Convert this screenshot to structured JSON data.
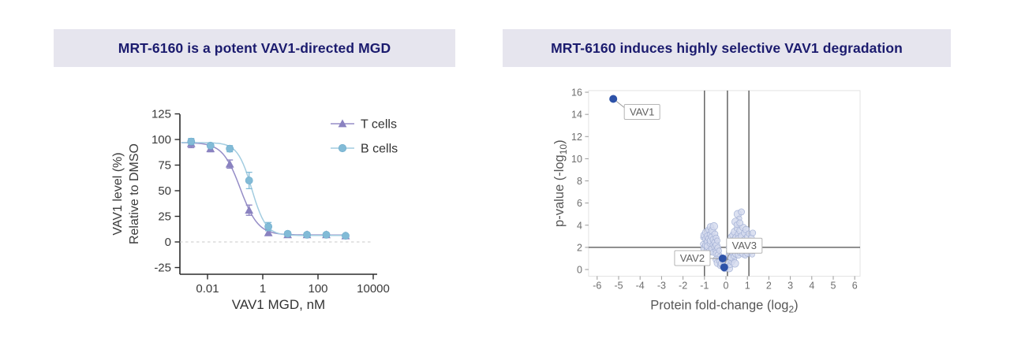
{
  "style": {
    "title_bar_bg": "#e6e5ee",
    "title_color": "#1b1b6e",
    "canvas_bg": "#ffffff"
  },
  "panels": {
    "left": {
      "title": "MRT-6160 is a potent VAV1-directed MGD"
    },
    "right": {
      "title": "MRT-6160 induces highly selective VAV1 degradation"
    }
  },
  "chart_data": [
    {
      "type": "line",
      "title": "MRT-6160 is a potent VAV1-directed MGD",
      "xlabel": "VAV1 MGD, nM",
      "ylabel_lines": [
        "VAV1 level (%)",
        "Relative to DMSO"
      ],
      "x_scale": "log10",
      "xlim": [
        0.0013,
        1200
      ],
      "ylim": [
        -25,
        125
      ],
      "x_tick_values": [
        0.01,
        1,
        100,
        10000
      ],
      "x_tick_labels": [
        "0.01",
        "1",
        "100",
        "10000"
      ],
      "y_ticks": [
        -25,
        0,
        25,
        50,
        75,
        100,
        125
      ],
      "zero_line": 0,
      "zero_line_color": "#c9c9c9",
      "axis_color": "#2b2b2b",
      "text_color": "#3a3a3a",
      "doses": [
        0.00256,
        0.0128,
        0.064,
        0.32,
        1.6,
        8,
        40,
        200,
        1000
      ],
      "series": [
        {
          "name": "T cells",
          "marker": "triangle",
          "marker_color": "#8a82c0",
          "line_color": "#958dc7",
          "values": [
            96,
            91,
            76,
            31,
            9,
            7,
            7,
            7,
            6
          ],
          "errors": [
            4,
            3,
            4,
            5,
            2,
            1,
            1,
            1,
            1
          ],
          "fit": {
            "top": 97,
            "bottom": 6.8,
            "ec50": 0.155,
            "hill": 1.35
          }
        },
        {
          "name": "B cells",
          "marker": "circle",
          "marker_color": "#82bbd7",
          "line_color": "#a2cce0",
          "values": [
            98,
            94,
            91,
            60,
            15,
            8,
            7,
            7,
            6
          ],
          "errors": [
            3,
            2,
            3,
            8,
            4,
            2,
            1,
            1,
            1
          ],
          "fit": {
            "top": 97,
            "bottom": 6.3,
            "ec50": 0.4,
            "hill": 1.7
          }
        }
      ]
    },
    {
      "type": "scatter",
      "title": "MRT-6160 induces highly selective VAV1 degradation",
      "xlabel": {
        "pre": "Protein fold-change (log",
        "sub": "2",
        "post": ")"
      },
      "ylabel": {
        "pre": "p-value (-log",
        "sub": "10",
        "post": ")"
      },
      "xlim": [
        -6.4,
        6.25
      ],
      "ylim": [
        -0.6,
        16.15
      ],
      "x_ticks": [
        -6,
        -5,
        -4,
        -3,
        -2,
        -1,
        0,
        1,
        2,
        3,
        4,
        5,
        6
      ],
      "y_ticks": [
        0,
        2,
        4,
        6,
        8,
        10,
        12,
        14,
        16
      ],
      "vlines": [
        -1,
        0.07,
        1.07
      ],
      "hline": 2,
      "colors": {
        "refline": "#4d4d4d",
        "border": "#e3e3e3",
        "point_fill": "#d3daee",
        "point_stroke": "#9fadd3",
        "highlight": "#2d52a8",
        "tick_text": "#6e6e6e",
        "label_text": "#5f5f5f",
        "label_border": "#b5b5b5"
      },
      "highlights": [
        {
          "label": "VAV1",
          "x": -5.25,
          "y": 15.4,
          "label_pos": "right-below"
        },
        {
          "label": "VAV2",
          "x": -0.15,
          "y": 1.0,
          "label_pos": "left"
        },
        {
          "label": "VAV3",
          "x": -0.08,
          "y": 0.2,
          "label_pos": "above-right"
        }
      ],
      "points": [
        [
          -1.07,
          2.3
        ],
        [
          -1.04,
          2.9
        ],
        [
          -1.02,
          3.1
        ],
        [
          -1.0,
          1.9
        ],
        [
          -0.97,
          2.75
        ],
        [
          -0.95,
          2.2
        ],
        [
          -0.93,
          3.35
        ],
        [
          -0.9,
          1.75
        ],
        [
          -0.88,
          2.5
        ],
        [
          -0.86,
          3.0
        ],
        [
          -0.84,
          2.1
        ],
        [
          -0.82,
          3.6
        ],
        [
          -0.8,
          2.8
        ],
        [
          -0.78,
          1.6
        ],
        [
          -0.76,
          2.35
        ],
        [
          -0.74,
          3.15
        ],
        [
          -0.72,
          3.85
        ],
        [
          -0.7,
          2.6
        ],
        [
          -0.68,
          1.9
        ],
        [
          -0.66,
          2.95
        ],
        [
          -0.64,
          3.5
        ],
        [
          -0.62,
          2.25
        ],
        [
          -0.6,
          1.55
        ],
        [
          -0.58,
          2.7
        ],
        [
          -0.56,
          3.9
        ],
        [
          -0.54,
          2.05
        ],
        [
          -0.52,
          3.2
        ],
        [
          -0.5,
          2.45
        ],
        [
          -0.48,
          1.7
        ],
        [
          -0.46,
          2.85
        ],
        [
          -0.44,
          2.2
        ],
        [
          -0.42,
          1.45
        ],
        [
          -0.4,
          2.6
        ],
        [
          -0.38,
          1.95
        ],
        [
          -0.35,
          1.3
        ],
        [
          -0.32,
          1.7
        ],
        [
          -0.3,
          1.1
        ],
        [
          -0.45,
          0.9
        ],
        [
          -0.38,
          0.6
        ],
        [
          -0.3,
          0.75
        ],
        [
          -0.25,
          0.35
        ],
        [
          -0.2,
          0.55
        ],
        [
          -0.15,
          0.25
        ],
        [
          -0.1,
          0.7
        ],
        [
          -0.05,
          0.1
        ],
        [
          0.0,
          0.45
        ],
        [
          0.05,
          0.2
        ],
        [
          0.1,
          0.6
        ],
        [
          0.15,
          0.1
        ],
        [
          0.2,
          0.4
        ],
        [
          0.28,
          0.7
        ],
        [
          0.35,
          0.95
        ],
        [
          0.42,
          0.55
        ],
        [
          0.12,
          1.3
        ],
        [
          0.15,
          2.0
        ],
        [
          0.18,
          1.6
        ],
        [
          0.2,
          2.5
        ],
        [
          0.22,
          1.1
        ],
        [
          0.25,
          1.9
        ],
        [
          0.27,
          2.9
        ],
        [
          0.3,
          1.5
        ],
        [
          0.32,
          2.3
        ],
        [
          0.34,
          3.1
        ],
        [
          0.36,
          1.2
        ],
        [
          0.38,
          2.7
        ],
        [
          0.4,
          1.8
        ],
        [
          0.42,
          3.4
        ],
        [
          0.44,
          2.1
        ],
        [
          0.46,
          1.4
        ],
        [
          0.48,
          2.9
        ],
        [
          0.5,
          3.7
        ],
        [
          0.52,
          1.7
        ],
        [
          0.54,
          2.4
        ],
        [
          0.55,
          5.0
        ],
        [
          0.56,
          3.2
        ],
        [
          0.58,
          1.3
        ],
        [
          0.6,
          2.8
        ],
        [
          0.62,
          4.6
        ],
        [
          0.64,
          2.0
        ],
        [
          0.66,
          3.5
        ],
        [
          0.68,
          1.6
        ],
        [
          0.7,
          2.55
        ],
        [
          0.72,
          5.2
        ],
        [
          0.74,
          3.0
        ],
        [
          0.76,
          1.9
        ],
        [
          0.78,
          2.35
        ],
        [
          0.8,
          3.8
        ],
        [
          0.82,
          1.45
        ],
        [
          0.84,
          2.7
        ],
        [
          0.86,
          3.3
        ],
        [
          0.88,
          2.0
        ],
        [
          0.9,
          1.25
        ],
        [
          0.92,
          2.5
        ],
        [
          0.94,
          3.6
        ],
        [
          0.96,
          1.8
        ],
        [
          0.98,
          2.95
        ],
        [
          1.0,
          2.2
        ],
        [
          1.02,
          1.5
        ],
        [
          1.05,
          3.25
        ],
        [
          1.08,
          2.6
        ],
        [
          1.1,
          1.9
        ],
        [
          1.12,
          2.3
        ],
        [
          1.15,
          1.6
        ],
        [
          1.18,
          2.85
        ],
        [
          1.2,
          2.1
        ],
        [
          1.22,
          1.35
        ],
        [
          1.25,
          3.3
        ],
        [
          1.28,
          1.75
        ],
        [
          0.45,
          4.3
        ],
        [
          0.5,
          4.05
        ],
        [
          0.65,
          4.2
        ]
      ]
    }
  ]
}
